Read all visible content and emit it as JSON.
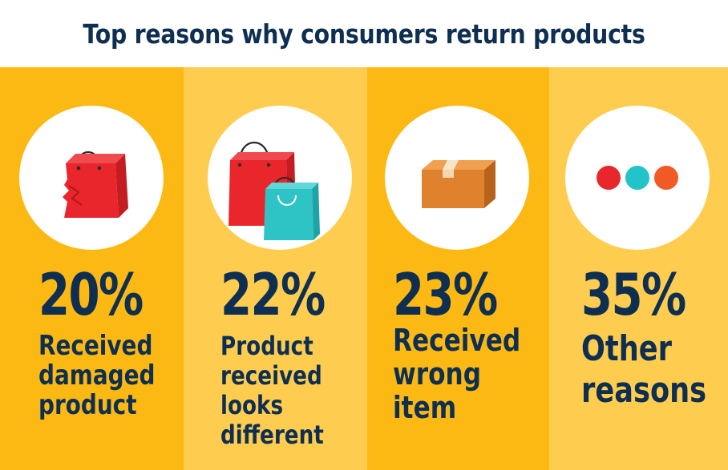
{
  "title": "Top reasons why consumers return products",
  "colors": {
    "title_text": "#0e2f52",
    "panel_dark": "#fdb913",
    "panel_light": "#fecd4f",
    "circle": "#ffffff",
    "bag_red": "#e8262b",
    "bag_teal": "#2ec4c6",
    "box_orange": "#e0812e",
    "dot_red": "#e8262b",
    "dot_teal": "#22c3c9",
    "dot_orange": "#f15a24"
  },
  "chart_data": {
    "type": "infographic",
    "title": "Top reasons why consumers return products",
    "categories": [
      "Received damaged product",
      "Product received looks different",
      "Received wrong item",
      "Other reasons"
    ],
    "values": [
      20,
      22,
      23,
      35
    ],
    "unit": "%",
    "items": [
      {
        "value_label": "20%",
        "label": "Received\ndamaged\nproduct",
        "icon": "damaged-bag-icon",
        "shade": "dark"
      },
      {
        "value_label": "22%",
        "label": "Product\nreceived\nlooks\ndifferent",
        "icon": "two-shopping-bags-icon",
        "shade": "light"
      },
      {
        "value_label": "23%",
        "label": "Received\nwrong\nitem",
        "icon": "cardboard-box-icon",
        "shade": "dark"
      },
      {
        "value_label": "35%",
        "label": "Other\nreasons",
        "icon": "three-dots-icon",
        "shade": "light"
      }
    ]
  }
}
